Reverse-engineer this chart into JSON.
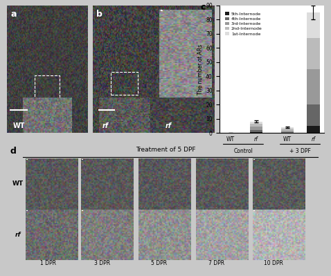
{
  "title": "",
  "panel_c": {
    "categories": [
      "WT",
      "rf",
      "WT",
      "rf"
    ],
    "group_labels": [
      "Control",
      "+ 3 DPF"
    ],
    "ylim": [
      0,
      90
    ],
    "yticks": [
      0,
      10,
      20,
      30,
      40,
      50,
      60,
      70,
      80,
      90
    ],
    "ylabel": "The number of ARs",
    "legend_labels": [
      "5th-Internode",
      "4th-Internode",
      "3rd-Internode",
      "2nd-Internode",
      "1st-Internode"
    ],
    "colors": [
      "#1a1a1a",
      "#666666",
      "#999999",
      "#bbbbbb",
      "#dddddd"
    ],
    "bar_data": {
      "WT_ctrl": [
        0,
        0,
        0,
        0,
        0
      ],
      "rf_ctrl": [
        0.5,
        1.5,
        2.5,
        2.0,
        1.5
      ],
      "WT_3dpf": [
        0.2,
        0.5,
        1.0,
        1.5,
        0.8
      ],
      "rf_3dpf": [
        5,
        15,
        25,
        22,
        18
      ]
    },
    "error_bars": {
      "WT_ctrl": 0.2,
      "rf_ctrl": 0.8,
      "WT_3dpf": 0.5,
      "rf_3dpf": 5.0
    },
    "bar_width": 0.5
  },
  "panel_d": {
    "time_labels": [
      "1 DPR",
      "3 DPR",
      "5 DPR",
      "7 DPR",
      "10 DPR"
    ],
    "row_labels": [
      "WT",
      "rf"
    ],
    "header": "Treatment of 5 DPF"
  },
  "bg_color": "#c8c8c8",
  "photo_bg_dark": "#1a1a1a",
  "photo_bg_mid": "#555555"
}
